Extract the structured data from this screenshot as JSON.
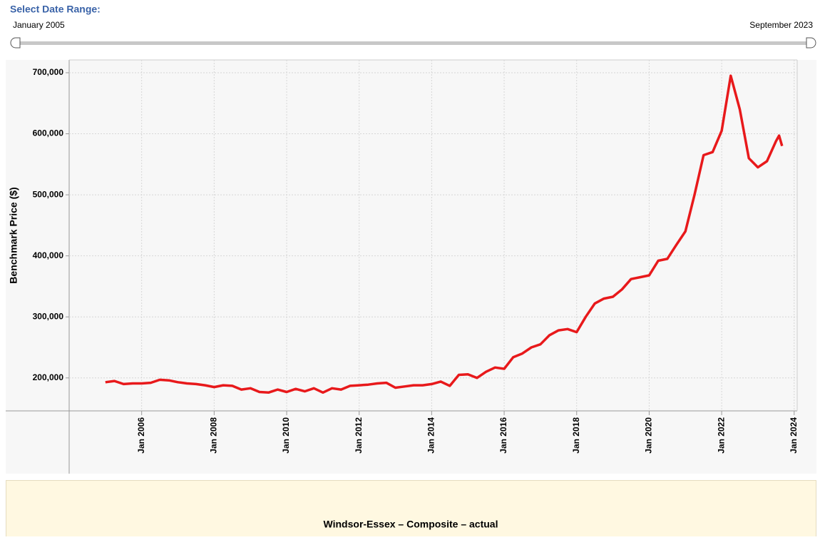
{
  "slider": {
    "label": "Select Date Range:",
    "start": "January 2005",
    "end": "September 2023"
  },
  "chart_data": {
    "type": "line",
    "ylabel": "Benchmark Price ($)",
    "color": "#e8191b",
    "grid": true,
    "x": [
      "2005-01",
      "2005-04",
      "2005-07",
      "2005-10",
      "2006-01",
      "2006-04",
      "2006-07",
      "2006-10",
      "2007-01",
      "2007-04",
      "2007-07",
      "2007-10",
      "2008-01",
      "2008-04",
      "2008-07",
      "2008-10",
      "2009-01",
      "2009-04",
      "2009-07",
      "2009-10",
      "2010-01",
      "2010-04",
      "2010-07",
      "2010-10",
      "2011-01",
      "2011-04",
      "2011-07",
      "2011-10",
      "2012-01",
      "2012-04",
      "2012-07",
      "2012-10",
      "2013-01",
      "2013-04",
      "2013-07",
      "2013-10",
      "2014-01",
      "2014-04",
      "2014-07",
      "2014-10",
      "2015-01",
      "2015-04",
      "2015-07",
      "2015-10",
      "2016-01",
      "2016-04",
      "2016-07",
      "2016-10",
      "2017-01",
      "2017-04",
      "2017-07",
      "2017-10",
      "2018-01",
      "2018-04",
      "2018-07",
      "2018-10",
      "2019-01",
      "2019-04",
      "2019-07",
      "2019-10",
      "2020-01",
      "2020-04",
      "2020-07",
      "2020-10",
      "2021-01",
      "2021-04",
      "2021-07",
      "2021-10",
      "2022-01",
      "2022-04",
      "2022-07",
      "2022-10",
      "2023-01",
      "2023-04",
      "2023-07",
      "2023-08",
      "2023-09"
    ],
    "values": [
      193000,
      195000,
      190000,
      191000,
      191000,
      192000,
      197000,
      196000,
      193000,
      191000,
      190000,
      188000,
      185000,
      188000,
      187000,
      181000,
      183000,
      177000,
      176000,
      181000,
      177000,
      182000,
      178000,
      183000,
      176000,
      183000,
      181000,
      187000,
      188000,
      189000,
      191000,
      192000,
      184000,
      186000,
      188000,
      188000,
      190000,
      194000,
      187000,
      205000,
      206000,
      200000,
      210000,
      217000,
      215000,
      234000,
      240000,
      250000,
      255000,
      270000,
      278000,
      280000,
      275000,
      300000,
      322000,
      330000,
      333000,
      345000,
      362000,
      365000,
      368000,
      392000,
      395000,
      418000,
      440000,
      500000,
      565000,
      570000,
      605000,
      695000,
      640000,
      560000,
      545000,
      555000,
      588000,
      597000,
      580000
    ],
    "xlim": [
      "2004-01",
      "2024-02"
    ],
    "xticks": [
      {
        "value": "2006-01",
        "label": "Jan 2006"
      },
      {
        "value": "2008-01",
        "label": "Jan 2008"
      },
      {
        "value": "2010-01",
        "label": "Jan 2010"
      },
      {
        "value": "2012-01",
        "label": "Jan 2012"
      },
      {
        "value": "2014-01",
        "label": "Jan 2014"
      },
      {
        "value": "2016-01",
        "label": "Jan 2016"
      },
      {
        "value": "2018-01",
        "label": "Jan 2018"
      },
      {
        "value": "2020-01",
        "label": "Jan 2020"
      },
      {
        "value": "2022-01",
        "label": "Jan 2022"
      },
      {
        "value": "2024-01",
        "label": "Jan 2024"
      }
    ],
    "ylim": [
      146000,
      721000
    ],
    "yticks": [
      {
        "value": 200000,
        "label": "200,000"
      },
      {
        "value": 300000,
        "label": "300,000"
      },
      {
        "value": 400000,
        "label": "400,000"
      },
      {
        "value": 500000,
        "label": "500,000"
      },
      {
        "value": 600000,
        "label": "600,000"
      },
      {
        "value": 700000,
        "label": "700,000"
      }
    ]
  },
  "footer": {
    "title": "Windsor-Essex – Composite – actual"
  }
}
